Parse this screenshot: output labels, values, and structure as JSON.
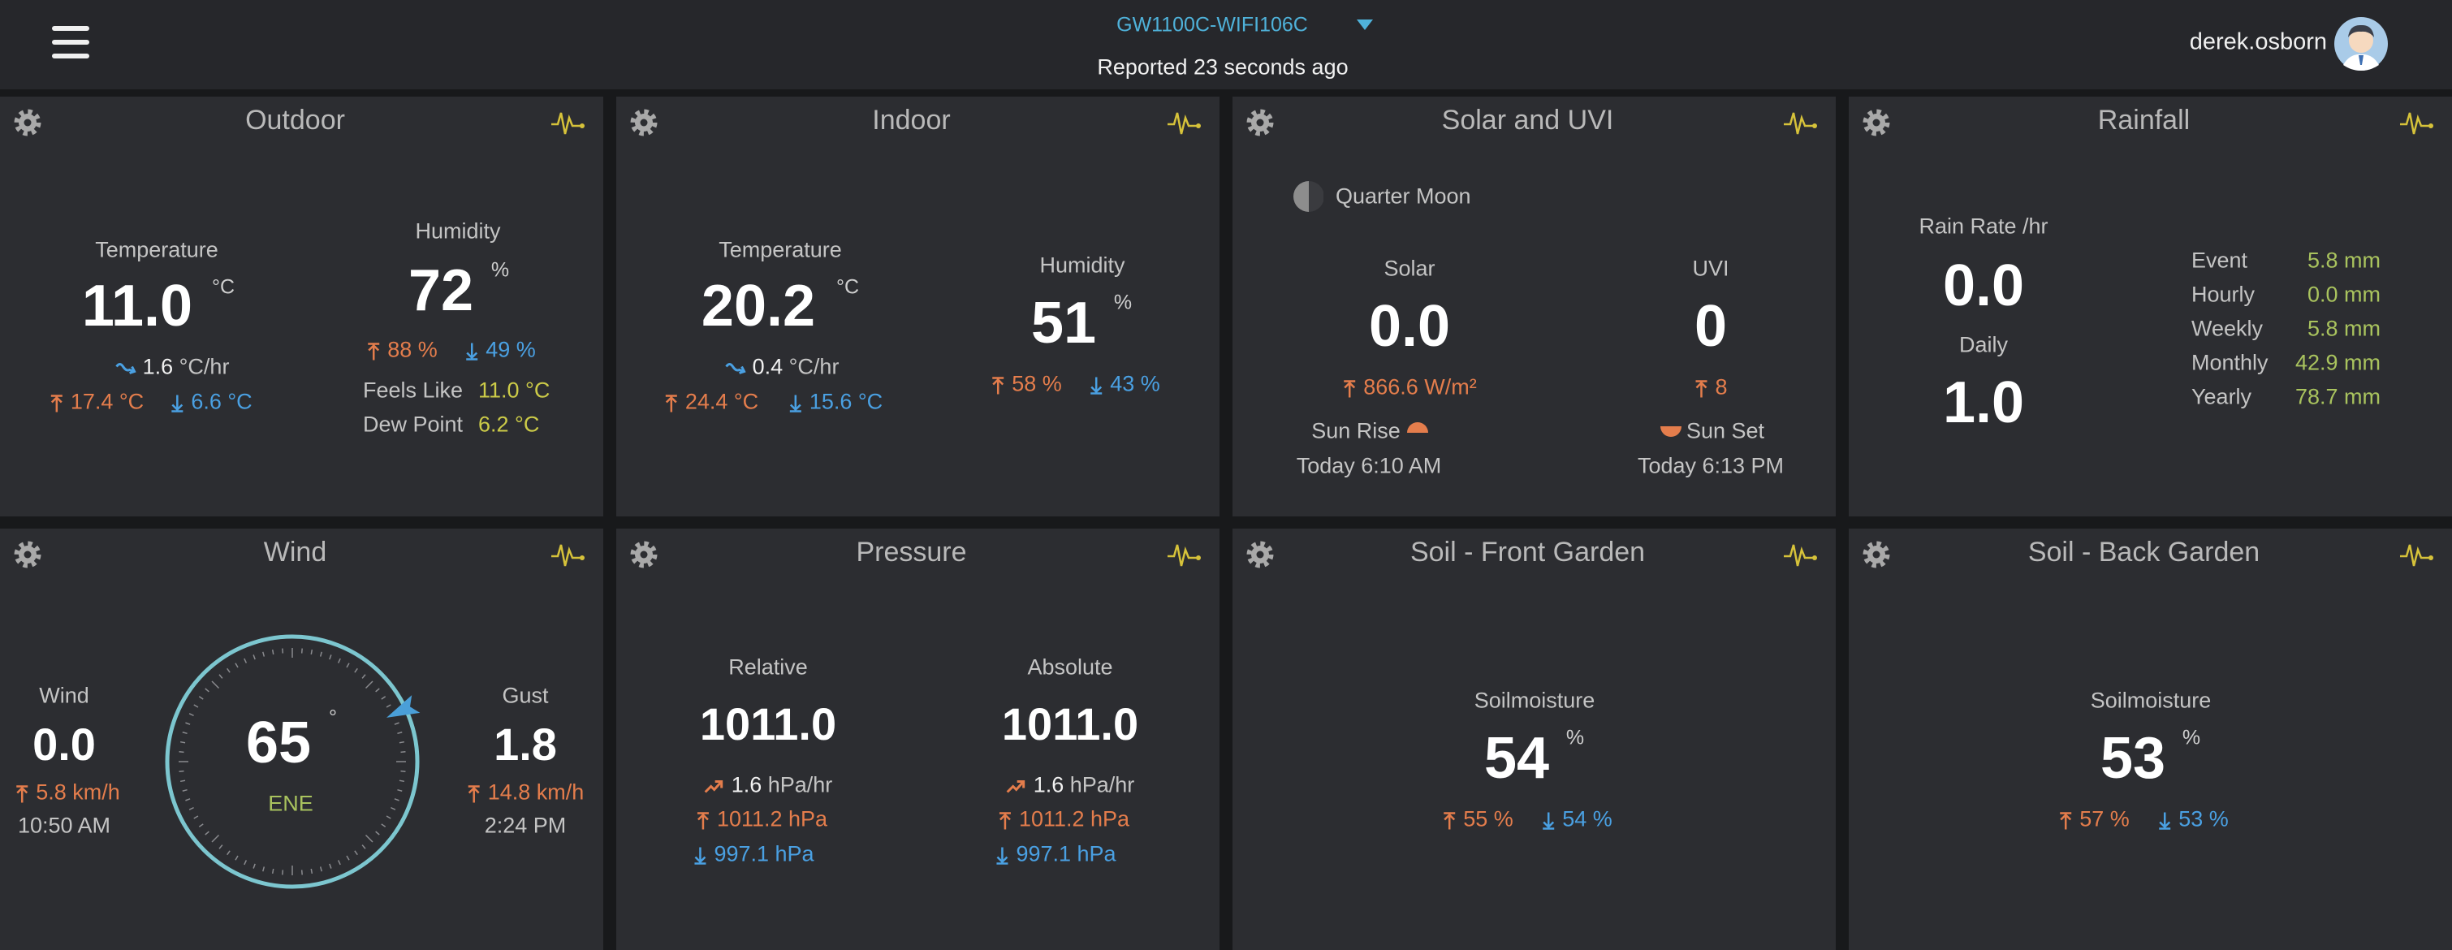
{
  "header": {
    "device": "GW1100C-WIFI106C",
    "status": "Reported 23 seconds ago",
    "user": "derek.osborn"
  },
  "outdoor": {
    "title": "Outdoor",
    "temperature": {
      "label": "Temperature",
      "value": "11.0",
      "unit": "°C",
      "rate": "1.6",
      "rate_unit": "°C/hr",
      "high": "17.4 °C",
      "low": "6.6 °C"
    },
    "humidity": {
      "label": "Humidity",
      "value": "72",
      "unit": "%",
      "high": "88 %",
      "low": "49 %"
    },
    "feels_like": {
      "label": "Feels Like",
      "value": "11.0 °C"
    },
    "dew_point": {
      "label": "Dew Point",
      "value": "6.2 °C"
    }
  },
  "indoor": {
    "title": "Indoor",
    "temperature": {
      "label": "Temperature",
      "value": "20.2",
      "unit": "°C",
      "rate": "0.4",
      "rate_unit": "°C/hr",
      "high": "24.4 °C",
      "low": "15.6 °C"
    },
    "humidity": {
      "label": "Humidity",
      "value": "51",
      "unit": "%",
      "high": "58 %",
      "low": "43 %"
    }
  },
  "solar": {
    "title": "Solar and UVI",
    "moon": "Quarter Moon",
    "solar": {
      "label": "Solar",
      "value": "0.0",
      "high": "866.6 W/m²"
    },
    "uvi": {
      "label": "UVI",
      "value": "0",
      "high": "8"
    },
    "sunrise": {
      "label": "Sun Rise",
      "time": "Today 6:10 AM"
    },
    "sunset": {
      "label": "Sun Set",
      "time": "Today 6:13 PM"
    }
  },
  "rainfall": {
    "title": "Rainfall",
    "rate": {
      "label": "Rain Rate /hr",
      "value": "0.0"
    },
    "daily": {
      "label": "Daily",
      "value": "1.0"
    },
    "totals": [
      {
        "label": "Event",
        "value": "5.8 mm"
      },
      {
        "label": "Hourly",
        "value": "0.0 mm"
      },
      {
        "label": "Weekly",
        "value": "5.8 mm"
      },
      {
        "label": "Monthly",
        "value": "42.9 mm"
      },
      {
        "label": "Yearly",
        "value": "78.7 mm"
      }
    ]
  },
  "wind": {
    "title": "Wind",
    "wind": {
      "label": "Wind",
      "value": "0.0",
      "high": "5.8 km/h",
      "time": "10:50 AM"
    },
    "direction": {
      "value": 65,
      "unit": "°",
      "compass": "ENE"
    },
    "gust": {
      "label": "Gust",
      "value": "1.8",
      "high": "14.8 km/h",
      "time": "2:24 PM"
    }
  },
  "pressure": {
    "title": "Pressure",
    "relative": {
      "label": "Relative",
      "value": "1011.0",
      "rate": "1.6",
      "rate_unit": "hPa/hr",
      "high": "1011.2 hPa",
      "low": "997.1 hPa"
    },
    "absolute": {
      "label": "Absolute",
      "value": "1011.0",
      "rate": "1.6",
      "rate_unit": "hPa/hr",
      "high": "1011.2 hPa",
      "low": "997.1 hPa"
    }
  },
  "soil_front": {
    "title": "Soil - Front Garden",
    "label": "Soilmoisture",
    "value": "54",
    "unit": "%",
    "high": "55 %",
    "low": "54 %"
  },
  "soil_back": {
    "title": "Soil - Back Garden",
    "label": "Soilmoisture",
    "value": "53",
    "unit": "%",
    "high": "57 %",
    "low": "53 %"
  }
}
